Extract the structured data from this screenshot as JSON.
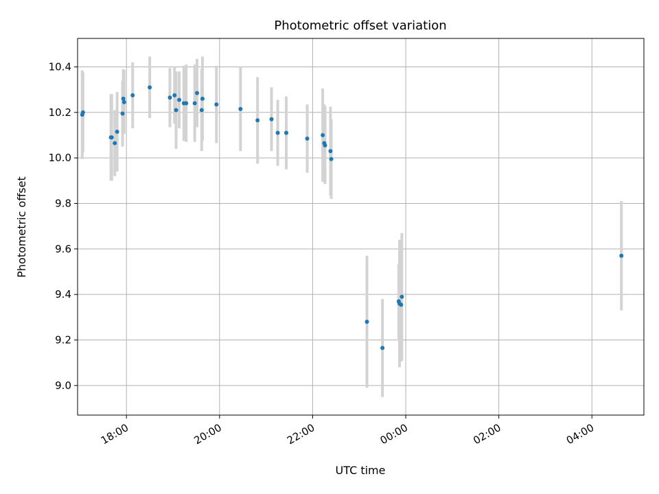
{
  "chart_data": {
    "type": "scatter",
    "title": "Photometric offset variation",
    "xlabel": "UTC time",
    "ylabel": "Photometric offset",
    "xlim": [
      "16:57",
      "05:07"
    ],
    "ylim": [
      8.87,
      10.525
    ],
    "grid": true,
    "x_ticks": [
      "18:00",
      "20:00",
      "22:00",
      "00:00",
      "02:00",
      "04:00"
    ],
    "y_ticks": [
      "9.0",
      "9.2",
      "9.4",
      "9.6",
      "9.8",
      "10.0",
      "10.2",
      "10.4"
    ],
    "y_tick_values": [
      9.0,
      9.2,
      9.4,
      9.6,
      9.8,
      10.0,
      10.2,
      10.4
    ],
    "point_color": "#1f77b4",
    "errorbar_color": "#d3d3d3",
    "series": [
      {
        "x": [
          "17:03",
          "17:04",
          "17:40",
          "17:41",
          "17:45",
          "17:48",
          "17:55",
          "17:56",
          "17:57",
          "18:08",
          "18:30",
          "18:56",
          "19:02",
          "19:04",
          "19:08",
          "19:14",
          "19:17",
          "19:28",
          "19:31",
          "19:37",
          "19:38",
          "19:56",
          "20:27",
          "20:49",
          "21:07",
          "21:15",
          "21:26",
          "21:53",
          "22:13",
          "22:15",
          "22:16",
          "22:23",
          "22:24",
          "23:10",
          "23:30",
          "23:51",
          "23:52",
          "23:54",
          "23:55",
          "04:38"
        ],
        "y": [
          10.19,
          10.2,
          10.09,
          10.09,
          10.065,
          10.115,
          10.195,
          10.26,
          10.245,
          10.275,
          10.31,
          10.265,
          10.275,
          10.21,
          10.255,
          10.24,
          10.24,
          10.24,
          10.285,
          10.21,
          10.26,
          10.235,
          10.215,
          10.165,
          10.17,
          10.11,
          10.11,
          10.085,
          10.1,
          10.065,
          10.055,
          10.03,
          9.995,
          9.28,
          9.165,
          9.37,
          9.36,
          9.355,
          9.39,
          9.57
        ],
        "err": [
          0.195,
          0.175,
          0.19,
          0.19,
          0.145,
          0.175,
          0.145,
          0.13,
          0.14,
          0.145,
          0.135,
          0.13,
          0.125,
          0.17,
          0.125,
          0.165,
          0.17,
          0.17,
          0.15,
          0.18,
          0.185,
          0.17,
          0.185,
          0.19,
          0.14,
          0.145,
          0.16,
          0.15,
          0.205,
          0.17,
          0.17,
          0.195,
          0.175,
          0.29,
          0.215,
          0.165,
          0.28,
          0.25,
          0.28,
          0.24
        ]
      }
    ]
  }
}
